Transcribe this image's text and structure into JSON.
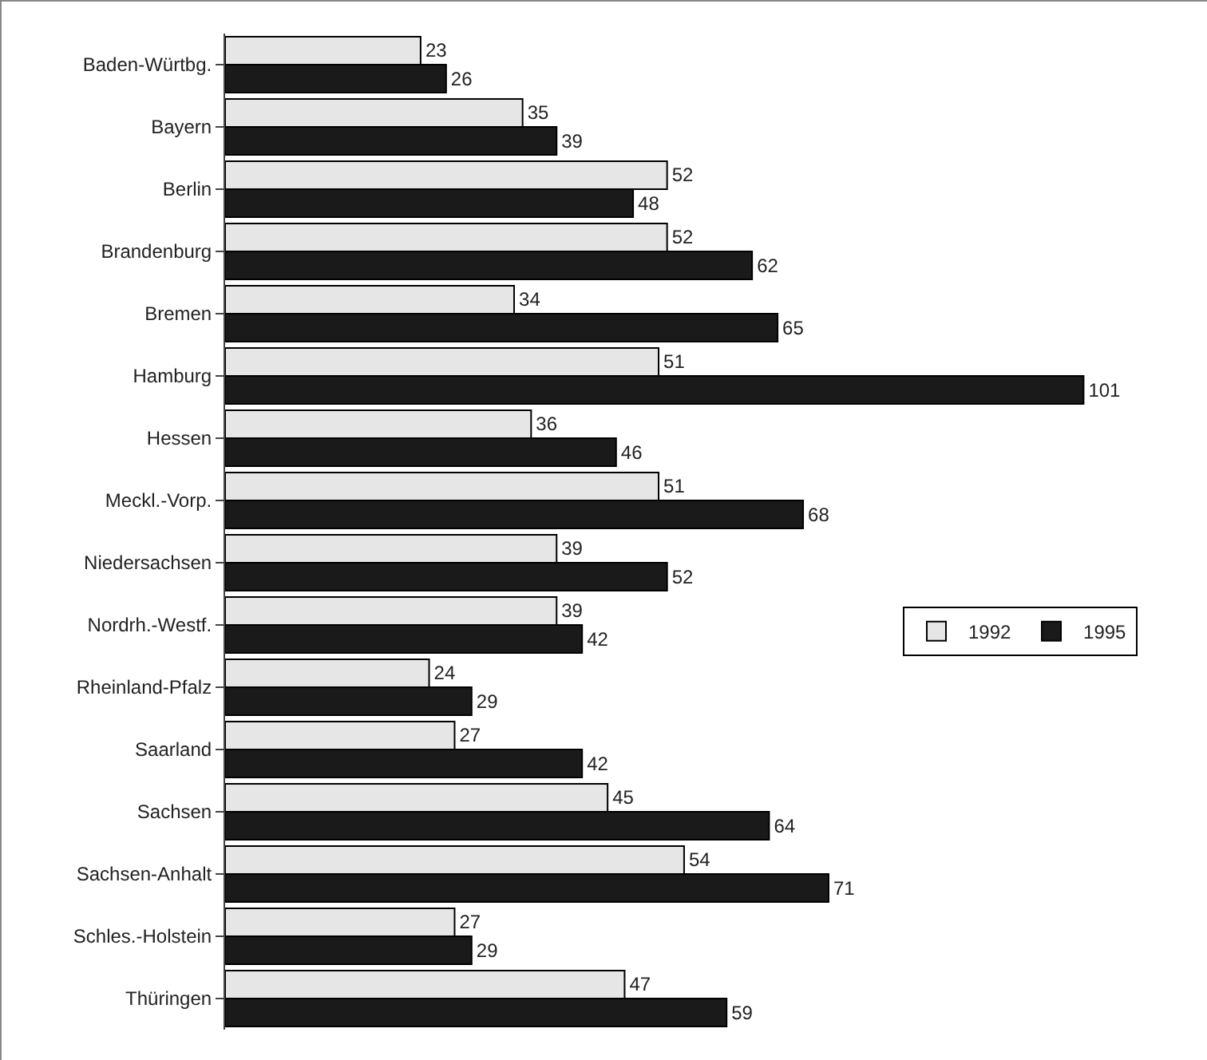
{
  "chart_data": {
    "type": "bar",
    "orientation": "horizontal",
    "tick_labels": "y",
    "data_labels": true,
    "legend": "right",
    "grid": false,
    "categories": [
      "Baden-Würtbg.",
      "Bayern",
      "Berlin",
      "Brandenburg",
      "Bremen",
      "Hamburg",
      "Hessen",
      "Meckl.-Vorp.",
      "Niedersachsen",
      "Nordrh.-Westf.",
      "Rheinland-Pfalz",
      "Saarland",
      "Sachsen",
      "Sachsen-Anhalt",
      "Schles.-Holstein",
      "Thüringen"
    ],
    "series": [
      {
        "name": "1992",
        "color": "#e6e6e6",
        "values": [
          23,
          35,
          52,
          52,
          34,
          51,
          36,
          51,
          39,
          39,
          24,
          27,
          45,
          54,
          27,
          47
        ]
      },
      {
        "name": "1995",
        "color": "#1a1a1a",
        "values": [
          26,
          39,
          48,
          62,
          65,
          101,
          46,
          68,
          52,
          42,
          29,
          42,
          64,
          71,
          29,
          59
        ]
      }
    ]
  }
}
